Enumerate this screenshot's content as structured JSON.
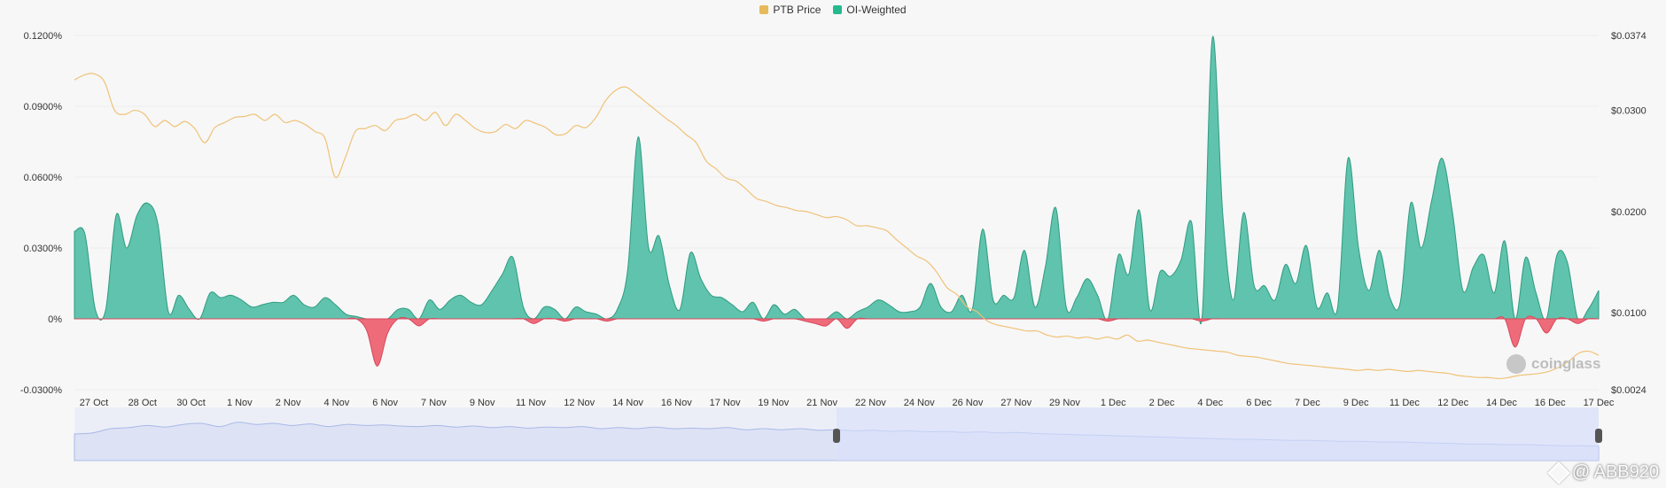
{
  "legend": {
    "items": [
      {
        "label": "PTB Price",
        "color": "#e6b95b"
      },
      {
        "label": "OI-Weighted",
        "color": "#26b98e"
      }
    ]
  },
  "watermark": {
    "brand": "coinglass"
  },
  "author_mark": {
    "text": "@ ABB920"
  },
  "colors": {
    "positive": "#5fc3ad",
    "positive_stroke": "#2f9c80",
    "negative": "#ee6b7a",
    "negative_stroke": "#d9485c",
    "price_line": "#f0c278",
    "navigator_fill": "#dde3f5",
    "navigator_line": "#a9b8e8",
    "navigator_selection": "#d8e0fb"
  },
  "chart_data": {
    "type": "area",
    "x_labels": [
      "27 Oct",
      "28 Oct",
      "30 Oct",
      "1 Nov",
      "2 Nov",
      "4 Nov",
      "6 Nov",
      "7 Nov",
      "9 Nov",
      "11 Nov",
      "12 Nov",
      "14 Nov",
      "16 Nov",
      "17 Nov",
      "19 Nov",
      "21 Nov",
      "22 Nov",
      "24 Nov",
      "26 Nov",
      "27 Nov",
      "29 Nov",
      "1 Dec",
      "2 Dec",
      "4 Dec",
      "6 Dec",
      "7 Dec",
      "9 Dec",
      "11 Dec",
      "12 Dec",
      "14 Dec",
      "16 Dec",
      "17 Dec"
    ],
    "y_left": {
      "ticks": [
        "0.1200%",
        "0.0900%",
        "0.0600%",
        "0.0300%",
        "0%",
        "-0.0300%"
      ],
      "range": [
        -0.03,
        0.12
      ]
    },
    "y_right": {
      "ticks": [
        "$0.0374",
        "$0.0300",
        "$0.0200",
        "$0.0100",
        "$0.0024"
      ],
      "range": [
        0.0024,
        0.0374
      ]
    },
    "series": [
      {
        "name": "OI-Weighted",
        "unit": "%",
        "values": [
          0.037,
          0.036,
          0.004,
          0.004,
          0.044,
          0.03,
          0.044,
          0.049,
          0.04,
          0.003,
          0.01,
          0.004,
          0.0,
          0.011,
          0.009,
          0.01,
          0.008,
          0.005,
          0.006,
          0.007,
          0.007,
          0.01,
          0.006,
          0.005,
          0.009,
          0.006,
          0.002,
          0.001,
          -0.005,
          -0.02,
          -0.006,
          0.004,
          0.004,
          -0.003,
          0.008,
          0.004,
          0.008,
          0.01,
          0.007,
          0.006,
          0.012,
          0.019,
          0.026,
          0.005,
          -0.002,
          0.005,
          0.004,
          -0.001,
          0.005,
          0.003,
          0.002,
          -0.001,
          0.004,
          0.021,
          0.077,
          0.03,
          0.035,
          0.014,
          0.004,
          0.028,
          0.017,
          0.01,
          0.009,
          0.006,
          0.003,
          0.007,
          -0.001,
          0.006,
          0.002,
          0.004,
          -0.001,
          -0.002,
          -0.003,
          0.003,
          -0.004,
          0.003,
          0.005,
          0.008,
          0.006,
          0.003,
          0.003,
          0.005,
          0.015,
          0.005,
          0.003,
          0.01,
          0.004,
          0.038,
          0.008,
          0.01,
          0.009,
          0.029,
          0.005,
          0.022,
          0.047,
          0.005,
          0.009,
          0.017,
          0.01,
          -0.001,
          0.027,
          0.019,
          0.046,
          0.004,
          0.02,
          0.018,
          0.025,
          0.041,
          -0.001,
          0.119,
          0.044,
          0.008,
          0.045,
          0.014,
          0.014,
          0.008,
          0.023,
          0.015,
          0.031,
          0.005,
          0.011,
          0.005,
          0.068,
          0.03,
          0.012,
          0.029,
          0.009,
          0.007,
          0.049,
          0.03,
          0.05,
          0.068,
          0.045,
          0.012,
          0.022,
          0.027,
          0.011,
          0.033,
          -0.012,
          0.026,
          0.011,
          -0.006,
          0.027,
          0.024,
          -0.002,
          0.004,
          0.012
        ]
      },
      {
        "name": "PTB Price",
        "unit": "$",
        "values": [
          0.033,
          0.0335,
          0.0336,
          0.0328,
          0.03,
          0.0296,
          0.03,
          0.0296,
          0.0284,
          0.029,
          0.0284,
          0.0289,
          0.0282,
          0.0268,
          0.0283,
          0.0288,
          0.0293,
          0.0294,
          0.0296,
          0.029,
          0.0296,
          0.0288,
          0.029,
          0.0286,
          0.0279,
          0.0272,
          0.0234,
          0.0253,
          0.0279,
          0.0282,
          0.0285,
          0.028,
          0.029,
          0.0292,
          0.0296,
          0.029,
          0.0298,
          0.0285,
          0.0296,
          0.029,
          0.0282,
          0.0278,
          0.0279,
          0.0286,
          0.0282,
          0.029,
          0.0287,
          0.0283,
          0.0276,
          0.0277,
          0.0285,
          0.0283,
          0.0293,
          0.031,
          0.032,
          0.0323,
          0.0316,
          0.0308,
          0.03,
          0.0292,
          0.0285,
          0.0276,
          0.0268,
          0.025,
          0.0242,
          0.0233,
          0.023,
          0.0222,
          0.0213,
          0.021,
          0.0206,
          0.0204,
          0.0201,
          0.02,
          0.0197,
          0.0194,
          0.0195,
          0.0192,
          0.0186,
          0.0186,
          0.0184,
          0.0181,
          0.0172,
          0.0164,
          0.0156,
          0.0151,
          0.014,
          0.0125,
          0.0118,
          0.0106,
          0.0101,
          0.0092,
          0.0088,
          0.0086,
          0.0084,
          0.0082,
          0.0082,
          0.0078,
          0.0076,
          0.0077,
          0.0075,
          0.0076,
          0.0074,
          0.0076,
          0.0074,
          0.0078,
          0.0072,
          0.0073,
          0.0071,
          0.0069,
          0.0067,
          0.0065,
          0.0064,
          0.0063,
          0.0062,
          0.0061,
          0.0058,
          0.0057,
          0.0056,
          0.0054,
          0.0052,
          0.005,
          0.0049,
          0.0048,
          0.0047,
          0.0046,
          0.0045,
          0.0044,
          0.0043,
          0.0044,
          0.0043,
          0.0044,
          0.0043,
          0.0042,
          0.0043,
          0.0042,
          0.0041,
          0.004,
          0.0038,
          0.0037,
          0.0036,
          0.0036,
          0.0035,
          0.0036,
          0.0038,
          0.0039,
          0.004,
          0.0042,
          0.0046,
          0.0052,
          0.006,
          0.0062,
          0.0058
        ]
      }
    ],
    "navigator": {
      "values": [
        0.5,
        0.52,
        0.6,
        0.62,
        0.66,
        0.63,
        0.68,
        0.7,
        0.64,
        0.72,
        0.68,
        0.7,
        0.66,
        0.69,
        0.64,
        0.68,
        0.66,
        0.67,
        0.65,
        0.64,
        0.66,
        0.63,
        0.65,
        0.62,
        0.64,
        0.61,
        0.63,
        0.62,
        0.64,
        0.6,
        0.62,
        0.6,
        0.63,
        0.6,
        0.61,
        0.6,
        0.62,
        0.58,
        0.6,
        0.58,
        0.6,
        0.57,
        0.58,
        0.56,
        0.57,
        0.55,
        0.56,
        0.54,
        0.55,
        0.53,
        0.54,
        0.52,
        0.53,
        0.51,
        0.5,
        0.49,
        0.48,
        0.47,
        0.46,
        0.45,
        0.44,
        0.43,
        0.42,
        0.41,
        0.4,
        0.4,
        0.39,
        0.38,
        0.38,
        0.37,
        0.36,
        0.36,
        0.35,
        0.35,
        0.34,
        0.33,
        0.32,
        0.31,
        0.31,
        0.3,
        0.3,
        0.29,
        0.28,
        0.28,
        0.27
      ],
      "selection": [
        0.5,
        1.0
      ]
    },
    "grid": true,
    "legend_position": "top-center"
  }
}
